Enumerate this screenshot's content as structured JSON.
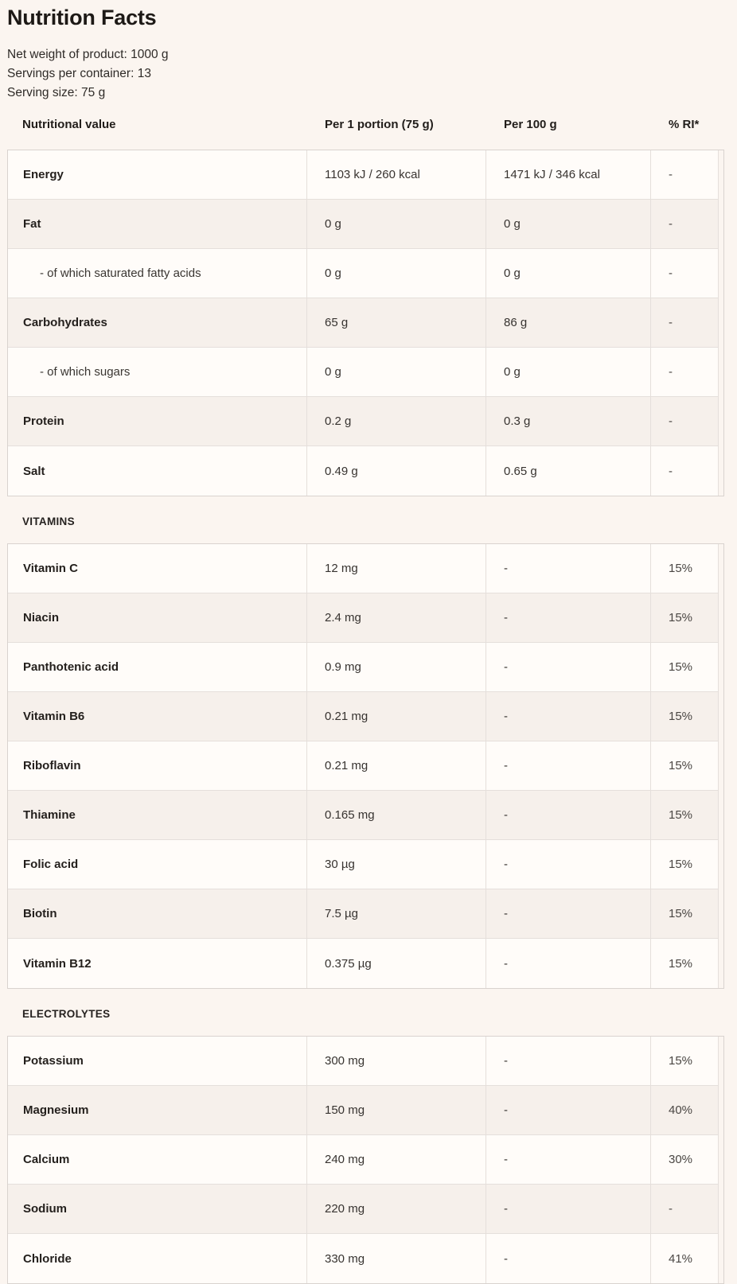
{
  "header": {
    "title": "Nutrition Facts",
    "net_weight": "Net weight of product: 1000 g",
    "servings": "Servings per container: 13",
    "serving_size": "Serving size: 75 g"
  },
  "columns": {
    "nutritional_value": "Nutritional value",
    "per_portion": "Per 1 portion (75 g)",
    "per_100g": "Per 100 g",
    "ri": "% RI*"
  },
  "main": {
    "rows": [
      {
        "label": "Energy",
        "per_portion": "1103 kJ / 260 kcal",
        "per_100g": "1471 kJ / 346 kcal",
        "ri": "-"
      },
      {
        "label": "Fat",
        "per_portion": "0 g",
        "per_100g": "0 g",
        "ri": "-"
      },
      {
        "label": "- of which saturated fatty acids",
        "per_portion": "0 g",
        "per_100g": "0 g",
        "ri": "-"
      },
      {
        "label": "Carbohydrates",
        "per_portion": "65 g",
        "per_100g": "86 g",
        "ri": "-"
      },
      {
        "label": "- of which sugars",
        "per_portion": "0 g",
        "per_100g": "0 g",
        "ri": "-"
      },
      {
        "label": "Protein",
        "per_portion": "0.2 g",
        "per_100g": "0.3 g",
        "ri": "-"
      },
      {
        "label": "Salt",
        "per_portion": "0.49 g",
        "per_100g": "0.65 g",
        "ri": "-"
      }
    ]
  },
  "vitamins": {
    "heading": "VITAMINS",
    "rows": [
      {
        "label": "Vitamin C",
        "per_portion": "12 mg",
        "per_100g": "-",
        "ri": "15%"
      },
      {
        "label": "Niacin",
        "per_portion": "2.4 mg",
        "per_100g": "-",
        "ri": "15%"
      },
      {
        "label": "Panthotenic acid",
        "per_portion": "0.9 mg",
        "per_100g": "-",
        "ri": "15%"
      },
      {
        "label": "Vitamin B6",
        "per_portion": "0.21 mg",
        "per_100g": "-",
        "ri": "15%"
      },
      {
        "label": "Riboflavin",
        "per_portion": "0.21 mg",
        "per_100g": "-",
        "ri": "15%"
      },
      {
        "label": "Thiamine",
        "per_portion": "0.165 mg",
        "per_100g": "-",
        "ri": "15%"
      },
      {
        "label": "Folic acid",
        "per_portion": "30 µg",
        "per_100g": "-",
        "ri": "15%"
      },
      {
        "label": "Biotin",
        "per_portion": "7.5 µg",
        "per_100g": "-",
        "ri": "15%"
      },
      {
        "label": "Vitamin B12",
        "per_portion": "0.375 µg",
        "per_100g": "-",
        "ri": "15%"
      }
    ]
  },
  "electrolytes": {
    "heading": "ELECTROLYTES",
    "rows": [
      {
        "label": "Potassium",
        "per_portion": "300 mg",
        "per_100g": "-",
        "ri": "15%"
      },
      {
        "label": "Magnesium",
        "per_portion": "150 mg",
        "per_100g": "-",
        "ri": "40%"
      },
      {
        "label": "Calcium",
        "per_portion": "240 mg",
        "per_100g": "-",
        "ri": "30%"
      },
      {
        "label": "Sodium",
        "per_portion": "220 mg",
        "per_100g": "-",
        "ri": "-"
      },
      {
        "label": "Chloride",
        "per_portion": "330 mg",
        "per_100g": "-",
        "ri": "41%"
      }
    ]
  },
  "colors": {
    "page_background": "#fbf5f0",
    "row_light": "#fffcf9",
    "row_shaded": "#f6f0eb",
    "border_outer": "#d9d3cf",
    "border_inner": "#e5dfdb",
    "text_primary": "#211d1a"
  }
}
